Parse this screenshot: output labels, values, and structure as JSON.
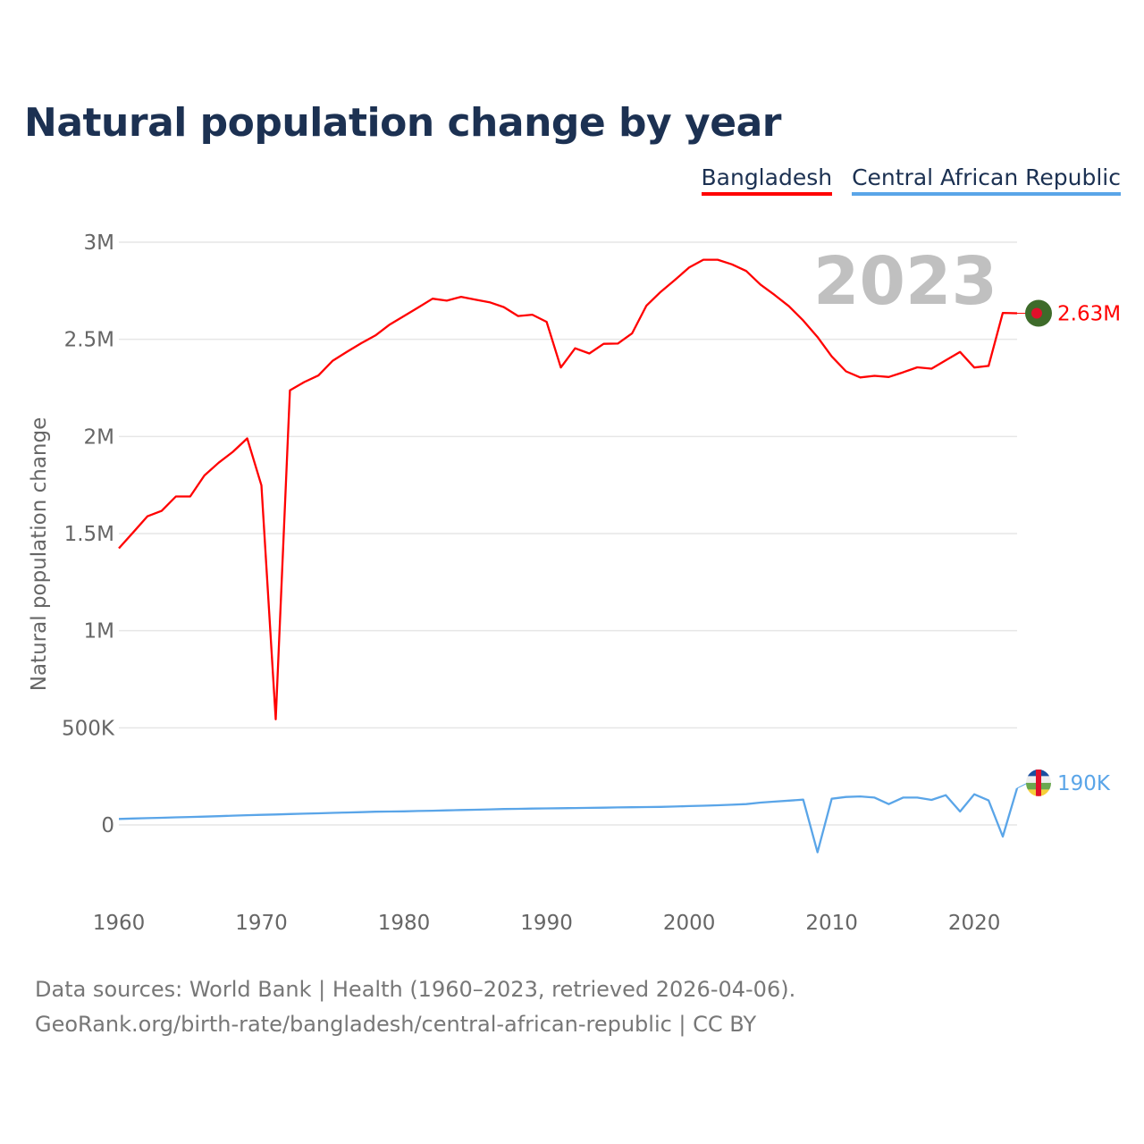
{
  "title": "Natural population change by year",
  "legend": [
    {
      "label": "Bangladesh",
      "color": "#ff0000"
    },
    {
      "label": "Central African Republic",
      "color": "#5aa5e8"
    }
  ],
  "year_display": "2023",
  "footer": {
    "line1": "Data sources: World Bank | Health (1960–2023, retrieved 2026-04-06).",
    "line2": "GeoRank.org/birth-rate/bangladesh/central-african-republic | CC BY"
  },
  "chart_data": {
    "type": "line",
    "title": "Natural population change by year",
    "xlabel": "",
    "ylabel": "Natural population change",
    "xlim": [
      1960,
      2023
    ],
    "ylim": [
      -200000,
      3000000
    ],
    "x_ticks": [
      1960,
      1970,
      1980,
      1990,
      2000,
      2010,
      2020
    ],
    "x_tick_labels": [
      "1960",
      "1970",
      "1980",
      "1990",
      "2000",
      "2010",
      "2020"
    ],
    "y_ticks": [
      0,
      500000,
      1000000,
      1500000,
      2000000,
      2500000,
      3000000
    ],
    "y_tick_labels": [
      "0",
      "500K",
      "1M",
      "1.5M",
      "2M",
      "2.5M",
      "3M"
    ],
    "grid": true,
    "legend_position": "top-right",
    "x": [
      1960,
      1961,
      1962,
      1963,
      1964,
      1965,
      1966,
      1967,
      1968,
      1969,
      1970,
      1971,
      1972,
      1973,
      1974,
      1975,
      1976,
      1977,
      1978,
      1979,
      1980,
      1981,
      1982,
      1983,
      1984,
      1985,
      1986,
      1987,
      1988,
      1989,
      1990,
      1991,
      1992,
      1993,
      1994,
      1995,
      1996,
      1997,
      1998,
      1999,
      2000,
      2001,
      2002,
      2003,
      2004,
      2005,
      2006,
      2007,
      2008,
      2009,
      2010,
      2011,
      2012,
      2013,
      2014,
      2015,
      2016,
      2017,
      2018,
      2019,
      2020,
      2021,
      2022,
      2023
    ],
    "series": [
      {
        "name": "Bangladesh",
        "color": "#ff0000",
        "end_label": "2.63M",
        "values": [
          1424000,
          1506000,
          1589000,
          1617000,
          1691000,
          1691000,
          1799000,
          1865000,
          1921000,
          1990000,
          1748000,
          544000,
          2237000,
          2280000,
          2314000,
          2390000,
          2436000,
          2480000,
          2520000,
          2576000,
          2620000,
          2664000,
          2709000,
          2699000,
          2719000,
          2704000,
          2691000,
          2666000,
          2620000,
          2627000,
          2590000,
          2355000,
          2454000,
          2427000,
          2477000,
          2478000,
          2531000,
          2673000,
          2744000,
          2806000,
          2870000,
          2910000,
          2910000,
          2886000,
          2852000,
          2782000,
          2728000,
          2670000,
          2597000,
          2512000,
          2412000,
          2335000,
          2304000,
          2312000,
          2306000,
          2330000,
          2356000,
          2349000,
          2392000,
          2435000,
          2355000,
          2363000,
          2636000,
          2634000
        ]
      },
      {
        "name": "Central African Republic",
        "color": "#5aa5e8",
        "end_label": "190K",
        "values": [
          31000,
          33000,
          35000,
          37000,
          39000,
          41000,
          43000,
          45000,
          48000,
          50000,
          52000,
          54000,
          56000,
          58000,
          60000,
          62000,
          64000,
          66000,
          68000,
          69000,
          70000,
          72000,
          73000,
          75000,
          77000,
          78000,
          80000,
          82000,
          83000,
          84000,
          85000,
          86000,
          87000,
          88000,
          89000,
          90000,
          91000,
          92000,
          93000,
          95000,
          97000,
          99000,
          101000,
          104000,
          107000,
          115000,
          120000,
          125000,
          130000,
          -141000,
          135000,
          144000,
          147000,
          141000,
          107000,
          141000,
          141000,
          129000,
          153000,
          69000,
          158000,
          126000,
          -60000,
          189000
        ]
      }
    ]
  }
}
